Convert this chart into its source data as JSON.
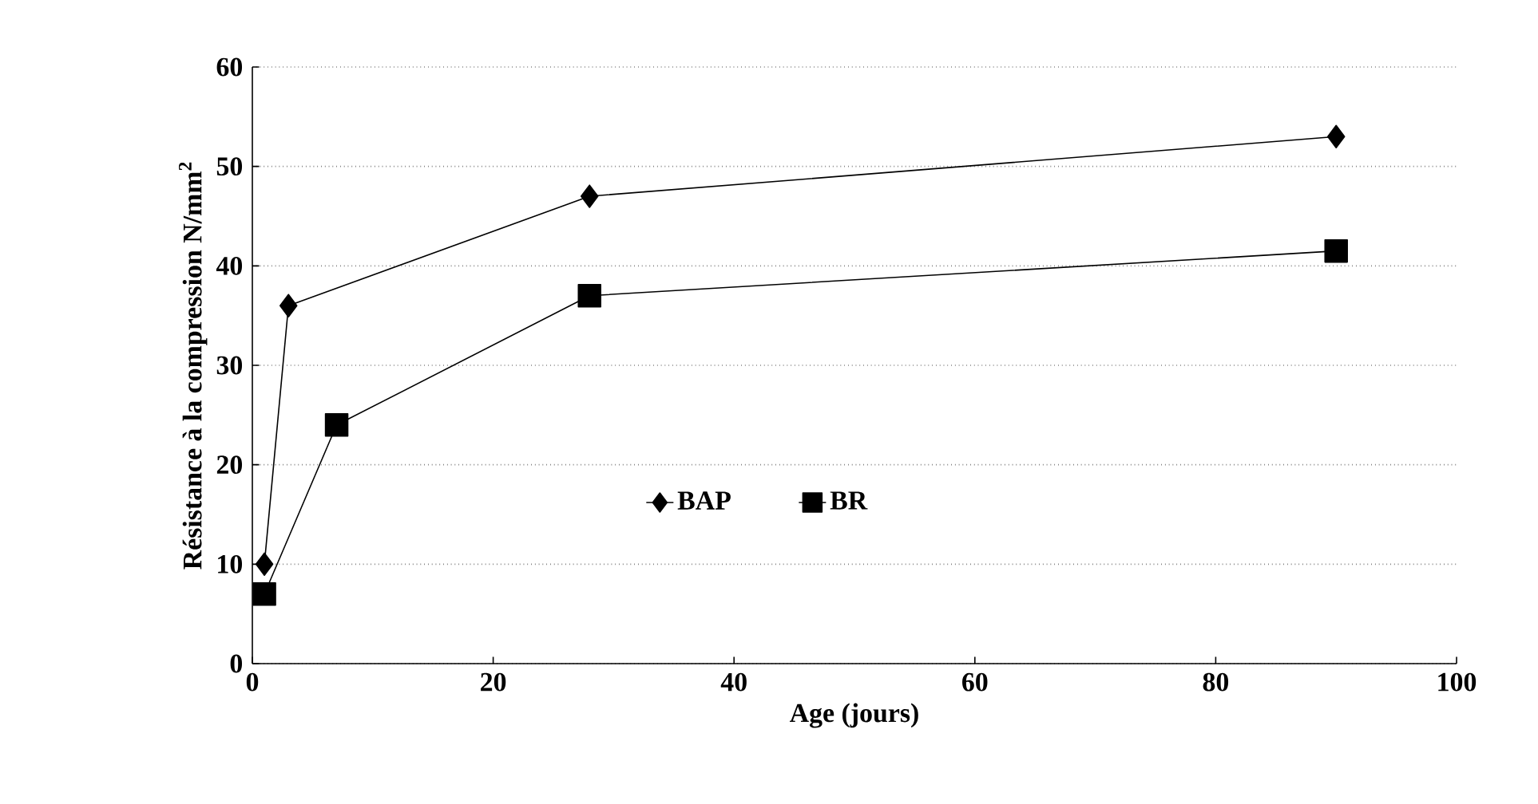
{
  "chart_data": {
    "type": "line",
    "xlabel": "Age (jours)",
    "ylabel": "Résistance à la compression N/mm$^{2}$",
    "xlim": [
      0,
      100
    ],
    "xticks": [
      0,
      20,
      40,
      60,
      80,
      100
    ],
    "ylim": [
      0,
      60
    ],
    "yticks": [
      0,
      10,
      20,
      30,
      40,
      50,
      60
    ],
    "grid": "y",
    "legend": "center",
    "line_style": "solid",
    "series": [
      {
        "name": "BAP",
        "color": "#000000",
        "marker": "diamond",
        "x": [
          1,
          3,
          28,
          90
        ],
        "values": [
          10,
          36,
          47,
          53
        ]
      },
      {
        "name": "BR",
        "color": "#000000",
        "marker": "square",
        "x": [
          1,
          7,
          28,
          90
        ],
        "values": [
          7,
          24,
          37,
          41.5
        ]
      }
    ]
  }
}
